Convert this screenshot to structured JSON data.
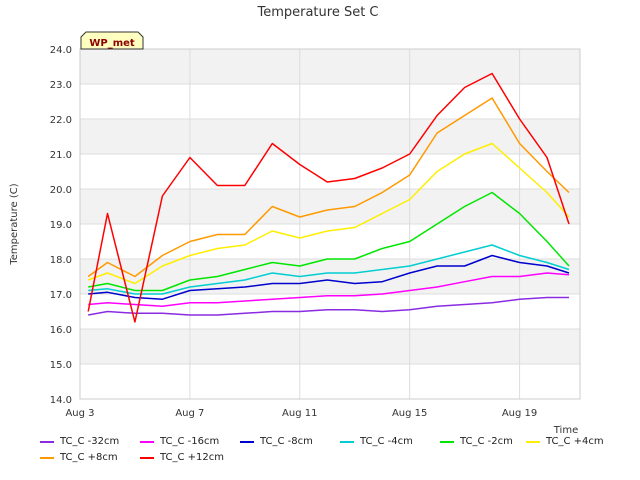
{
  "chart_data": {
    "type": "line",
    "title": "Temperature Set C",
    "xlabel": "Time",
    "ylabel": "Temperature (C)",
    "badge": "WP_met",
    "xlim": [
      3,
      21.2
    ],
    "ylim": [
      14.0,
      24.0
    ],
    "x_ticks": [
      {
        "value": 3,
        "label": "Aug 3"
      },
      {
        "value": 7,
        "label": "Aug 7"
      },
      {
        "value": 11,
        "label": "Aug 11"
      },
      {
        "value": 15,
        "label": "Aug 15"
      },
      {
        "value": 19,
        "label": "Aug 19"
      }
    ],
    "y_ticks": [
      14.0,
      15.0,
      16.0,
      17.0,
      18.0,
      19.0,
      20.0,
      21.0,
      22.0,
      23.0,
      24.0
    ],
    "grid": true,
    "legend_position": "bottom",
    "series": [
      {
        "name": "TC_C -32cm",
        "color": "#8a2be2",
        "x": [
          3.3,
          4,
          5,
          6,
          7,
          8,
          9,
          10,
          11,
          12,
          13,
          14,
          15,
          16,
          17,
          18,
          19,
          20,
          20.8
        ],
        "y": [
          16.4,
          16.5,
          16.45,
          16.45,
          16.4,
          16.4,
          16.45,
          16.5,
          16.5,
          16.55,
          16.55,
          16.5,
          16.55,
          16.65,
          16.7,
          16.75,
          16.85,
          16.9,
          16.9
        ]
      },
      {
        "name": "TC_C -16cm",
        "color": "#ff00ff",
        "x": [
          3.3,
          4,
          5,
          6,
          7,
          8,
          9,
          10,
          11,
          12,
          13,
          14,
          15,
          16,
          17,
          18,
          19,
          20,
          20.8
        ],
        "y": [
          16.7,
          16.75,
          16.7,
          16.65,
          16.75,
          16.75,
          16.8,
          16.85,
          16.9,
          16.95,
          16.95,
          17.0,
          17.1,
          17.2,
          17.35,
          17.5,
          17.5,
          17.6,
          17.55
        ]
      },
      {
        "name": "TC_C -8cm",
        "color": "#0000cd",
        "x": [
          3.3,
          4,
          5,
          6,
          7,
          8,
          9,
          10,
          11,
          12,
          13,
          14,
          15,
          16,
          17,
          18,
          19,
          20,
          20.8
        ],
        "y": [
          17.0,
          17.05,
          16.9,
          16.85,
          17.1,
          17.15,
          17.2,
          17.3,
          17.3,
          17.4,
          17.3,
          17.35,
          17.6,
          17.8,
          17.8,
          18.1,
          17.9,
          17.8,
          17.6
        ]
      },
      {
        "name": "TC_C -4cm",
        "color": "#00ced1",
        "x": [
          3.3,
          4,
          5,
          6,
          7,
          8,
          9,
          10,
          11,
          12,
          13,
          14,
          15,
          16,
          17,
          18,
          19,
          20,
          20.8
        ],
        "y": [
          17.1,
          17.15,
          17.0,
          17.0,
          17.2,
          17.3,
          17.4,
          17.6,
          17.5,
          17.6,
          17.6,
          17.7,
          17.8,
          18.0,
          18.2,
          18.4,
          18.1,
          17.9,
          17.7
        ]
      },
      {
        "name": "TC_C -2cm",
        "color": "#00e600",
        "x": [
          3.3,
          4,
          5,
          6,
          7,
          8,
          9,
          10,
          11,
          12,
          13,
          14,
          15,
          16,
          17,
          18,
          19,
          20,
          20.8
        ],
        "y": [
          17.2,
          17.3,
          17.1,
          17.1,
          17.4,
          17.5,
          17.7,
          17.9,
          17.8,
          18.0,
          18.0,
          18.3,
          18.5,
          19.0,
          19.5,
          19.9,
          19.3,
          18.5,
          17.8
        ]
      },
      {
        "name": "TC_C +4cm",
        "color": "#ffee00",
        "x": [
          3.3,
          4,
          5,
          6,
          7,
          8,
          9,
          10,
          11,
          12,
          13,
          14,
          15,
          16,
          17,
          18,
          19,
          20,
          20.8
        ],
        "y": [
          17.4,
          17.6,
          17.3,
          17.8,
          18.1,
          18.3,
          18.4,
          18.8,
          18.6,
          18.8,
          18.9,
          19.3,
          19.7,
          20.5,
          21.0,
          21.3,
          20.6,
          19.9,
          19.2
        ]
      },
      {
        "name": "TC_C +8cm",
        "color": "#ff9900",
        "x": [
          3.3,
          4,
          5,
          6,
          7,
          8,
          9,
          10,
          11,
          12,
          13,
          14,
          15,
          16,
          17,
          18,
          19,
          20,
          20.8
        ],
        "y": [
          17.5,
          17.9,
          17.5,
          18.1,
          18.5,
          18.7,
          18.7,
          19.5,
          19.2,
          19.4,
          19.5,
          19.9,
          20.4,
          21.6,
          22.1,
          22.6,
          21.3,
          20.5,
          19.9
        ]
      },
      {
        "name": "TC_C +12cm",
        "color": "#ff0000",
        "x": [
          3.3,
          4,
          5,
          6,
          7,
          8,
          9,
          10,
          11,
          12,
          13,
          14,
          15,
          16,
          17,
          18,
          19,
          20,
          20.8
        ],
        "y": [
          16.5,
          19.3,
          16.2,
          19.8,
          20.9,
          20.1,
          20.1,
          21.3,
          20.7,
          20.2,
          20.3,
          20.6,
          21.0,
          22.1,
          22.9,
          23.3,
          22.0,
          20.9,
          19.0
        ]
      }
    ]
  }
}
